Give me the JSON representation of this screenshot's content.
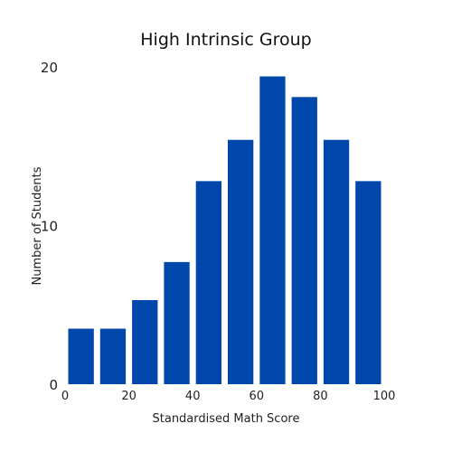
{
  "chart_data": {
    "type": "bar",
    "title": "High Intrinsic Group",
    "xlabel": "Standardised Math Score",
    "ylabel": "Number of Students",
    "bin_edges": [
      0,
      10,
      20,
      30,
      40,
      50,
      60,
      70,
      80,
      90,
      100
    ],
    "values": [
      3.5,
      3.5,
      5.3,
      7.7,
      12.8,
      15.4,
      19.4,
      18.1,
      15.4,
      12.8
    ],
    "xlim": [
      0,
      100
    ],
    "ylim": [
      0,
      20
    ],
    "x_ticks": [
      0,
      20,
      40,
      60,
      80,
      100
    ],
    "y_ticks": [
      0,
      10,
      20
    ],
    "bar_color": "#0047ab",
    "grid": false,
    "legend": "none"
  }
}
